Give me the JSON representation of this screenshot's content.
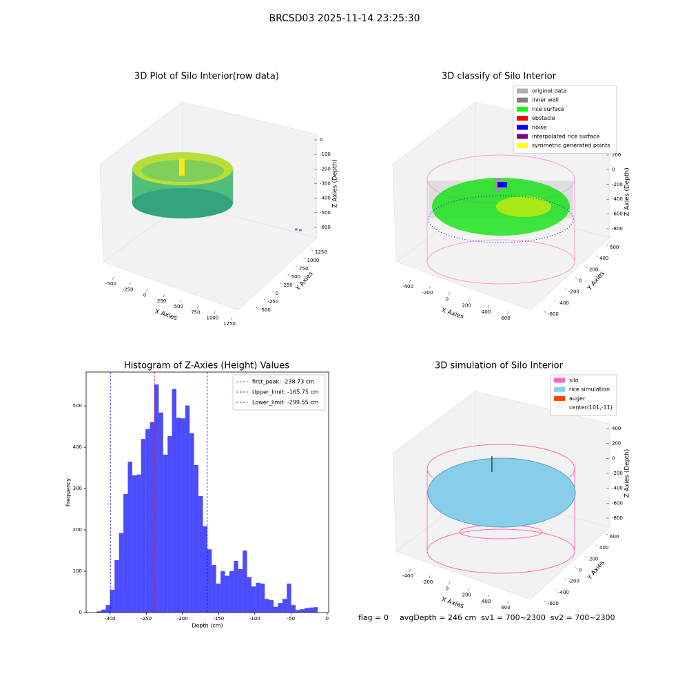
{
  "title": "BRCSD03 2025-11-14 23:25:30",
  "footer": [
    "flag = 0",
    "avgDepth = 246 cm  sv1 = 700~2300  sv2 = 700~2300"
  ],
  "chart_data": [
    {
      "type": "scatter3d",
      "title": "3D Plot of Silo Interior(row data)",
      "xlabel": "X Axies",
      "ylabel": "Y Axies",
      "zlabel": "Z Axies (Depth)",
      "xlim": [
        -500,
        1250
      ],
      "xticks": [
        -500,
        -250,
        0,
        250,
        500,
        750,
        1000,
        1250
      ],
      "ylim": [
        -500,
        1250
      ],
      "yticks": [
        -500,
        -250,
        0,
        250,
        500,
        750,
        1000,
        1250
      ],
      "zlim": [
        -600,
        0
      ],
      "zticks": [
        0,
        -100,
        -200,
        -300,
        -400,
        -500,
        -600
      ]
    },
    {
      "type": "scatter3d",
      "title": "3D classify of Silo Interior",
      "xlabel": "X Axies",
      "ylabel": "Y Axies",
      "zlabel": "Z Axies (Depth)",
      "xlim": [
        -400,
        600
      ],
      "xticks": [
        -400,
        -200,
        0,
        200,
        400,
        600
      ],
      "ylim": [
        -600,
        600
      ],
      "yticks": [
        -600,
        -400,
        -200,
        0,
        200,
        400,
        600
      ],
      "zlim": [
        -800,
        200
      ],
      "zticks": [
        200,
        0,
        -200,
        -400,
        -600,
        -800
      ],
      "legend": [
        {
          "name": "original data",
          "color": "#b0b0b0"
        },
        {
          "name": "inner wall",
          "color": "#808080"
        },
        {
          "name": "rice surface",
          "color": "#00ff00"
        },
        {
          "name": "obstacle",
          "color": "#ff0000"
        },
        {
          "name": "noise",
          "color": "#0000ff"
        },
        {
          "name": "interpolated rice surface",
          "color": "#800080"
        },
        {
          "name": "symmetric generated points",
          "color": "#ffff00"
        }
      ]
    },
    {
      "type": "histogram",
      "title": "Histogram of Z-Axies (Height) Values",
      "xlabel": "Depth (cm)",
      "ylabel": "Frequency",
      "color": "#0000ff",
      "bins": [
        -318.1,
        -312.0,
        -305.9,
        -299.8,
        -293.7,
        -287.6,
        -281.5,
        -275.4,
        -269.3,
        -263.2,
        -257.1,
        -251.0,
        -244.9,
        -238.8,
        -232.7,
        -226.6,
        -220.5,
        -214.4,
        -208.3,
        -202.2,
        -196.1,
        -190.0,
        -183.9,
        -177.8,
        -171.7,
        -165.6,
        -159.5,
        -153.4,
        -147.3,
        -141.2,
        -135.1,
        -129.0,
        -122.9,
        -116.8,
        -110.7,
        -104.6,
        -98.5,
        -92.4,
        -86.3,
        -80.2,
        -74.1,
        -68.0,
        -61.9,
        -55.8,
        -49.7,
        -43.6,
        -37.5,
        -31.4,
        -25.3,
        -19.2,
        -13.1
      ],
      "values": [
        3,
        7,
        18,
        55,
        127,
        192,
        287,
        365,
        332,
        334,
        420,
        444,
        461,
        552,
        484,
        382,
        427,
        541,
        471,
        470,
        501,
        434,
        357,
        282,
        209,
        153,
        115,
        70,
        100,
        89,
        100,
        125,
        105,
        150,
        86,
        63,
        72,
        70,
        33,
        30,
        14,
        23,
        33,
        70,
        18,
        6,
        8,
        11,
        12,
        13
      ],
      "xlim": [
        -333,
        2
      ],
      "xticks": [
        -300,
        -250,
        -200,
        -150,
        -100,
        -50,
        0
      ],
      "ylim": [
        0,
        582
      ],
      "yticks": [
        0,
        100,
        200,
        300,
        400,
        500
      ],
      "vlines": [
        {
          "label": "first_peak: -238.73 cm",
          "value": -238.73,
          "color": "#ff0000"
        },
        {
          "label": "Upper_limit: -165.75 cm",
          "value": -165.75,
          "color": "#0000ff"
        },
        {
          "label": "Lower_limit: -299.55 cm",
          "value": -299.55,
          "color": "#0000ff"
        }
      ],
      "legend_loc": "upper right"
    },
    {
      "type": "scatter3d",
      "title": "3D simulation of Silo Interior",
      "xlabel": "X Axies",
      "ylabel": "Y Axies",
      "zlabel": "Z Axies (Depth)",
      "xlim": [
        -400,
        600
      ],
      "xticks": [
        -400,
        -200,
        0,
        200,
        400,
        600
      ],
      "ylim": [
        -600,
        600
      ],
      "yticks": [
        -600,
        -400,
        -200,
        0,
        200,
        400,
        600
      ],
      "zlim": [
        -800,
        400
      ],
      "zticks": [
        400,
        200,
        0,
        -200,
        -400,
        -600,
        -800
      ],
      "legend": [
        {
          "name": "silo",
          "color": "#ff69b4"
        },
        {
          "name": "rice simulation",
          "color": "#87ceeb"
        },
        {
          "name": "auger",
          "color": "#ff4500"
        },
        {
          "name": "center(101,-11)",
          "color": null
        }
      ]
    }
  ]
}
